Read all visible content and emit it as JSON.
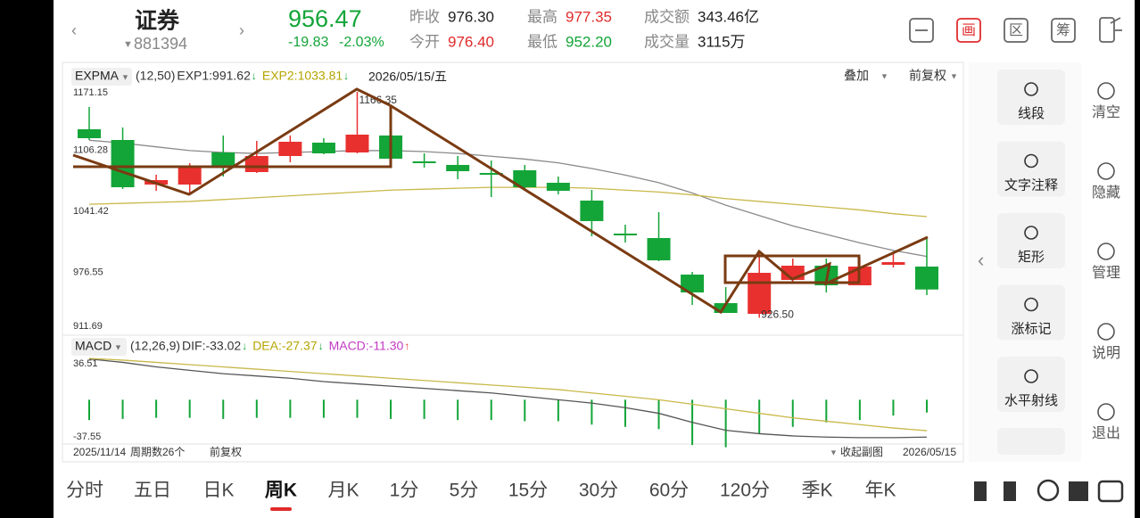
{
  "header": {
    "name": "证券",
    "code": "881394",
    "price": "956.47",
    "change": "-19.83",
    "change_pct": "-2.03%",
    "stats": [
      {
        "label": "昨收",
        "value": "976.30",
        "color": "#222222"
      },
      {
        "label": "今开",
        "value": "976.40",
        "color": "#e02b2b"
      },
      {
        "label": "最高",
        "value": "977.35",
        "color": "#e02b2b"
      },
      {
        "label": "最低",
        "value": "952.20",
        "color": "#13a538"
      },
      {
        "label": "成交额",
        "value": "343.46亿",
        "color": "#222222"
      },
      {
        "label": "成交量",
        "value": "3115万",
        "color": "#222222"
      }
    ],
    "icons": [
      "画",
      "区",
      "筹"
    ]
  },
  "chart_data": [
    {
      "type": "candlestick",
      "indicator": "EXPMA",
      "params": "(12,50)",
      "legend": [
        {
          "text": "EXP1:991.62",
          "color": "#333333",
          "arrow": "↓",
          "arrow_color": "#13a538"
        },
        {
          "text": "EXP2:1033.81",
          "color": "#b5a400",
          "arrow": "↓",
          "arrow_color": "#13a538"
        }
      ],
      "date": "2026/05/15/五",
      "overlay": "叠加",
      "adjust": "前复权",
      "ylim": [
        911.69,
        1171.15
      ],
      "yticks": [
        1171.15,
        1106.28,
        1041.42,
        976.55,
        911.69
      ],
      "categories": [
        "2025/11/14",
        null,
        null,
        null,
        null,
        null,
        null,
        null,
        null,
        null,
        null,
        null,
        null,
        null,
        null,
        null,
        null,
        null,
        null,
        null,
        null,
        null,
        null,
        null,
        null,
        "2026/05/15"
      ],
      "open": [
        1126.64,
        1115.28,
        1067.94,
        1067.94,
        1102.02,
        1081.19,
        1098.24,
        1112.44,
        1102.02,
        1120.02,
        1092.55,
        1088.77,
        1080.25,
        1083.09,
        1069.83,
        1050.9,
        1015.86,
        1011.12,
        972.31,
        941.99,
        930.62,
        966.63,
        981.76,
        960.92,
        982.72,
        980.82
      ],
      "high": [
        1150.32,
        1128.54,
        1078.36,
        1090.66,
        1120.02,
        1114.33,
        1120.02,
        1117.17,
        1166.35,
        1121.91,
        1101.08,
        1098.24,
        1093.5,
        1088.77,
        1076.46,
        1062.25,
        1025.32,
        1038.58,
        975.13,
        959.04,
        996.91,
        989.34,
        989.34,
        990.28,
        996.91,
        1010.18
      ],
      "low": [
        1115.28,
        1063.2,
        1061.31,
        1057.52,
        1076.46,
        1080.25,
        1091.61,
        1100.1,
        1101.08,
        1093.5,
        1085.93,
        1073.62,
        1054.68,
        1062.25,
        1057.52,
        1013.02,
        1006.39,
        986.5,
        940.1,
        931.57,
        926.5,
        962.84,
        953.36,
        960.92,
        979.87,
        950.51
      ],
      "close": [
        1117.17,
        1065.09,
        1072.67,
        1085.93,
        1086.87,
        1098.24,
        1113.39,
        1101.08,
        1120.96,
        1095.4,
        1090.66,
        1082.14,
        1078.36,
        1065.09,
        1061.31,
        1029.12,
        1013.96,
        987.45,
        953.36,
        931.57,
        974.19,
        981.76,
        960.92,
        980.82,
        985.55,
        956.47
      ],
      "up_color": "#e8312f",
      "down_color": "#13a538",
      "high_label": "1166.35",
      "low_label": "926.50",
      "series": [
        {
          "color": "#8a8a8a",
          "values": [
            1115,
            1112,
            1108,
            1104,
            1102,
            1101,
            1102,
            1103,
            1104,
            1104,
            1103,
            1101,
            1098,
            1095,
            1091,
            1085,
            1078,
            1070,
            1059,
            1046,
            1035,
            1024,
            1015,
            1006,
            998,
            991.62
          ]
        },
        {
          "color": "#c9b84a",
          "values": [
            1047,
            1048,
            1049,
            1050,
            1052,
            1054,
            1056,
            1058,
            1060,
            1062,
            1063,
            1064,
            1065,
            1065,
            1065,
            1064,
            1062,
            1060,
            1057,
            1053,
            1050,
            1047,
            1044,
            1041,
            1037,
            1033.81
          ]
        }
      ]
    },
    {
      "type": "macd",
      "indicator": "MACD",
      "params": "(12,26,9)",
      "legend": [
        {
          "text": "DIF:-33.02",
          "color": "#333333",
          "arrow": "↓",
          "arrow_color": "#13a538"
        },
        {
          "text": "DEA:-27.37",
          "color": "#b5a400",
          "arrow": "↓",
          "arrow_color": "#13a538"
        },
        {
          "text": "MACD:-11.30",
          "color": "#c23bc2",
          "arrow": "↑",
          "arrow_color": "#e8312f"
        }
      ],
      "ylim": [
        -37.55,
        36.51
      ],
      "yticks": [
        36.51,
        -37.55
      ],
      "bar_up_color": "#e8312f",
      "bar_down_color": "#13a538",
      "bars": [
        -18,
        -17,
        -16,
        -16,
        -17,
        -16,
        -16,
        -16,
        -16,
        -17,
        -17,
        -18,
        -18,
        -19,
        -19,
        -22,
        -24,
        -26,
        -40,
        -42,
        -30,
        -24,
        -20,
        -18,
        -14,
        -11.3
      ],
      "series": [
        {
          "color": "#555555",
          "values": [
            36,
            33,
            29,
            26,
            23,
            21,
            19,
            16,
            14,
            12,
            10,
            8,
            6,
            3,
            0,
            -3,
            -7,
            -12,
            -20,
            -27,
            -30,
            -32,
            -33,
            -33.5,
            -33.5,
            -33.02
          ]
        },
        {
          "color": "#c9b84a",
          "values": [
            36.5,
            35,
            33,
            31,
            29,
            27,
            25,
            23,
            21,
            19,
            17,
            15,
            13,
            11,
            9,
            6,
            3,
            0,
            -4,
            -8,
            -12,
            -16,
            -19,
            -22,
            -25,
            -27.37
          ]
        }
      ]
    }
  ],
  "footer": {
    "period_count": "周期数26个",
    "adjust": "前复权",
    "collapse": "收起副图"
  },
  "tools": [
    "线段",
    "文字注释",
    "矩形",
    "涨标记",
    "水平射线"
  ],
  "side_menu": [
    "清空",
    "隐藏",
    "管理",
    "说明",
    "退出"
  ],
  "tabs": [
    "分时",
    "五日",
    "日K",
    "周K",
    "月K",
    "1分",
    "5分",
    "15分",
    "30分",
    "60分",
    "120分",
    "季K",
    "年K"
  ],
  "active_tab": 3
}
